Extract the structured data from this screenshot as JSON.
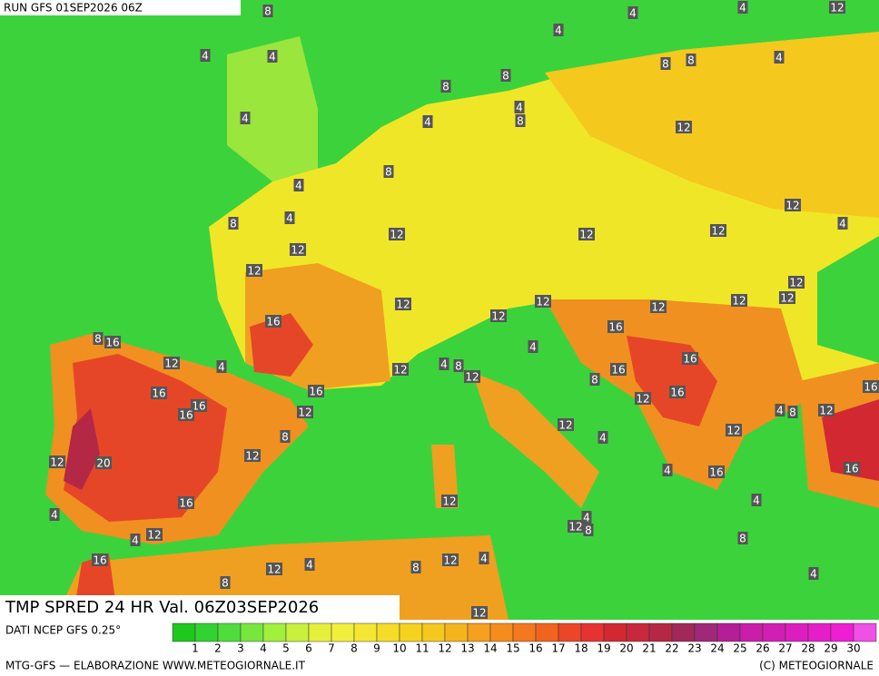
{
  "header": {
    "run": "RUN GFS 01SEP2026 06Z"
  },
  "map": {
    "title": "TMP SPRED 24 HR Val. 06Z03SEP2026",
    "labels": [
      8,
      4,
      4,
      12,
      4,
      4,
      4,
      8,
      8,
      4,
      8,
      8,
      4,
      4,
      4,
      8,
      12,
      8,
      4,
      12,
      8,
      4,
      4,
      12,
      12,
      12,
      12,
      12,
      12,
      12,
      12,
      12,
      12,
      12,
      16,
      12,
      16,
      8,
      16,
      4,
      12,
      4,
      16,
      12,
      4,
      8,
      12,
      16,
      8,
      16,
      16,
      16,
      16,
      16,
      12,
      12,
      4,
      8,
      12,
      16,
      12,
      4,
      8,
      12,
      12,
      12,
      20,
      4,
      16,
      16,
      12,
      16,
      4,
      4,
      4,
      12,
      8,
      4,
      12,
      8,
      16,
      12,
      4,
      12,
      4,
      8,
      4,
      8,
      12
    ]
  },
  "legend": {
    "source": "DATI NCEP GFS 0.25°",
    "colors": [
      "#1ec81e",
      "#32d232",
      "#50dc3c",
      "#78e63c",
      "#a0f03c",
      "#c8f03c",
      "#e6f03c",
      "#f0f03c",
      "#f5e632",
      "#f5dc28",
      "#f5d21e",
      "#f5c81e",
      "#f5b41e",
      "#f5a01e",
      "#f58c1e",
      "#f5781e",
      "#f0641e",
      "#eb4628",
      "#e63232",
      "#d22832",
      "#c8283c",
      "#b42846",
      "#a0285a",
      "#a02878",
      "#b41e96",
      "#c81eaa",
      "#d21eb4",
      "#dc1ebe",
      "#e61ec8",
      "#f01ed2",
      "#f050e6"
    ],
    "ticks": [
      1,
      2,
      3,
      4,
      5,
      6,
      7,
      8,
      9,
      10,
      11,
      12,
      13,
      14,
      15,
      16,
      17,
      18,
      19,
      20,
      21,
      22,
      23,
      24,
      25,
      26,
      27,
      28,
      29,
      30
    ]
  },
  "footer": {
    "left": "MTG-GFS — ELABORAZIONE WWW.METEOGIORNALE.IT",
    "right": "(C) METEOGIORNALE"
  }
}
